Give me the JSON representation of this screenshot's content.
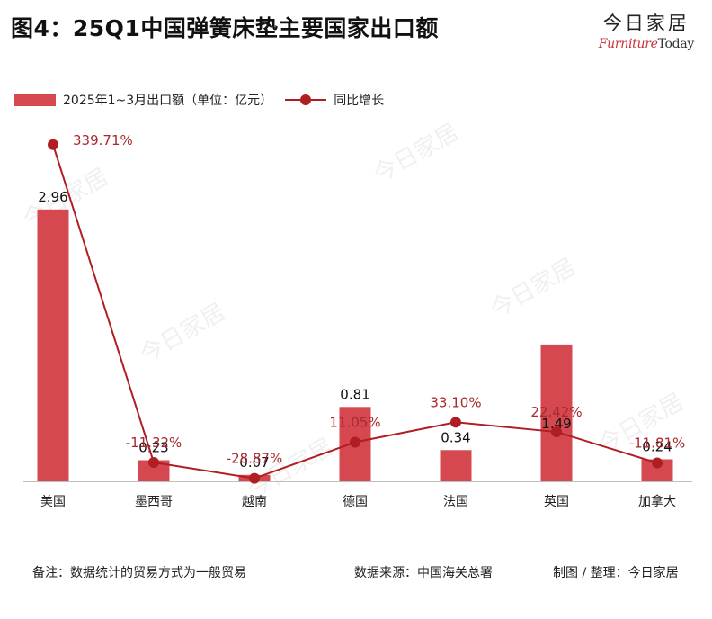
{
  "title": "图4：25Q1中国弹簧床垫主要国家出口额",
  "brand": {
    "cn": "今日家居",
    "en_lead": "Furniture",
    "en_tail": "Today"
  },
  "legend": {
    "bar_label": "2025年1~3月出口额（单位：亿元）",
    "line_label": "同比增长"
  },
  "colors": {
    "bar": "#d5484f",
    "line": "#b01e24",
    "line_label": "#a8292e"
  },
  "chart_data": {
    "type": "bar",
    "categories": [
      "美国",
      "墨西哥",
      "越南",
      "德国",
      "法国",
      "英国",
      "加拿大"
    ],
    "series": [
      {
        "name": "2025年1~3月出口额（单位：亿元）",
        "type": "bar",
        "values": [
          2.96,
          0.23,
          0.07,
          0.81,
          0.34,
          1.49,
          0.24
        ],
        "labels": [
          "2.96",
          "0.23",
          "0.07",
          "0.81",
          "0.34",
          "1.49",
          "0.24"
        ]
      },
      {
        "name": "同比增长",
        "type": "line",
        "values": [
          339.71,
          -11.32,
          -28.87,
          11.05,
          33.1,
          22.42,
          -11.81
        ],
        "labels": [
          "339.71%",
          "-11.32%",
          "-28.87%",
          "11.05%",
          "33.10%",
          "22.42%",
          "-11.81%"
        ]
      }
    ],
    "bar_ylim": [
      0,
      4.3
    ],
    "line_ylim": [
      -60,
      420
    ],
    "grid": false,
    "legend_position": "top-left"
  },
  "footer": {
    "note": "备注：数据统计的贸易方式为一般贸易",
    "source": "数据来源：中国海关总署",
    "credit": "制图 / 整理：今日家居"
  }
}
